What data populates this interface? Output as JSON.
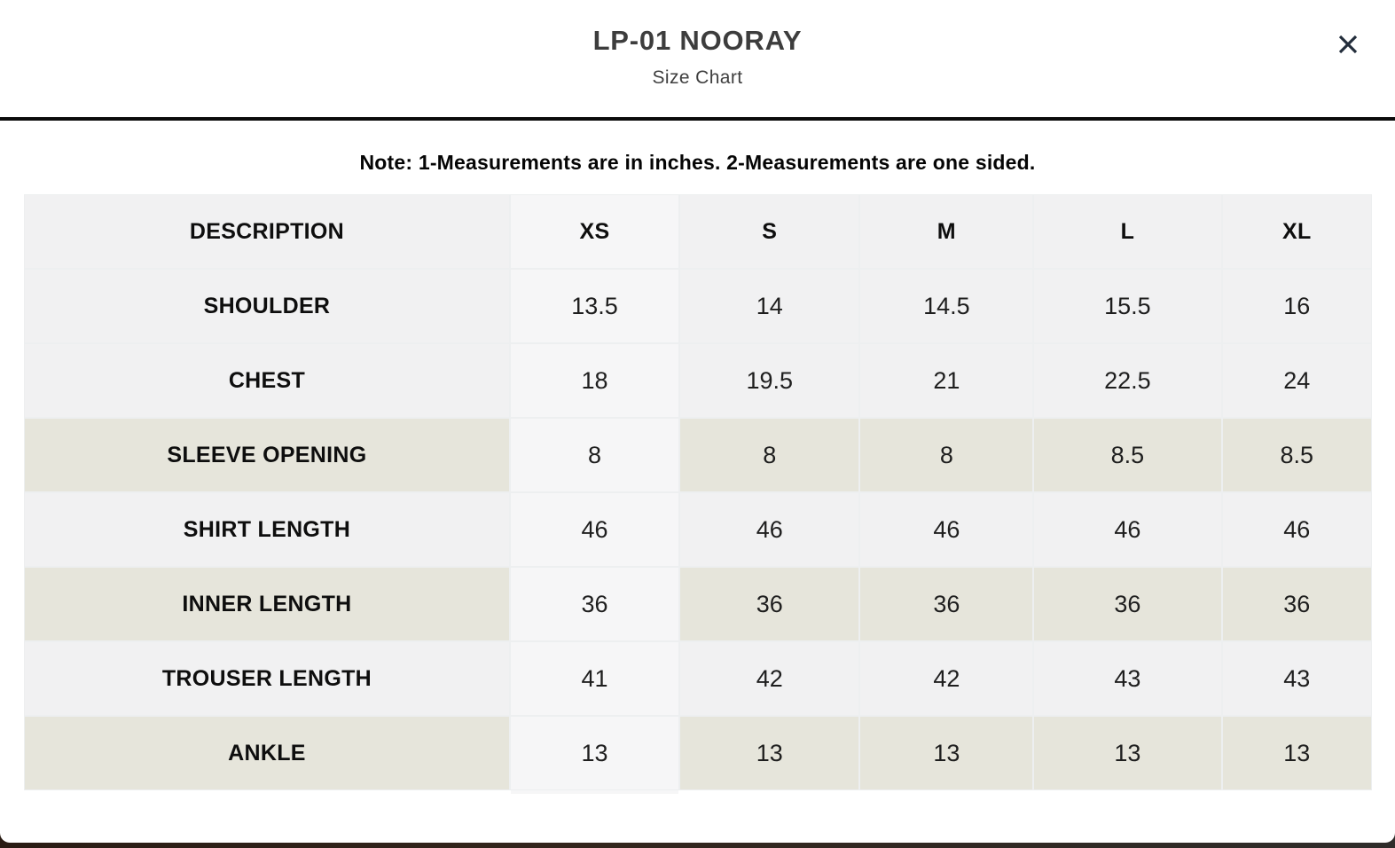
{
  "modal": {
    "title": "LP-01 NOORAY",
    "subtitle": "Size Chart",
    "close_icon": "close-x",
    "note": "Note: 1-Measurements are in inches. 2-Measurements are one sided."
  },
  "table": {
    "columns": [
      "DESCRIPTION",
      "XS",
      "S",
      "M",
      "L",
      "XL"
    ],
    "rows": [
      {
        "label": "SHOULDER",
        "tone": "gray",
        "values": [
          "13.5",
          "14",
          "14.5",
          "15.5",
          "16"
        ]
      },
      {
        "label": "CHEST",
        "tone": "gray",
        "values": [
          "18",
          "19.5",
          "21",
          "22.5",
          "24"
        ]
      },
      {
        "label": "SLEEVE OPENING",
        "tone": "beige",
        "values": [
          "8",
          "8",
          "8",
          "8.5",
          "8.5"
        ]
      },
      {
        "label": "SHIRT LENGTH",
        "tone": "gray",
        "values": [
          "46",
          "46",
          "46",
          "46",
          "46"
        ]
      },
      {
        "label": "INNER LENGTH",
        "tone": "beige",
        "values": [
          "36",
          "36",
          "36",
          "36",
          "36"
        ]
      },
      {
        "label": "TROUSER LENGTH",
        "tone": "gray",
        "values": [
          "41",
          "42",
          "42",
          "43",
          "43"
        ]
      },
      {
        "label": "ANKLE",
        "tone": "beige",
        "values": [
          "13",
          "13",
          "13",
          "13",
          "13"
        ]
      }
    ]
  },
  "colors": {
    "gray_cell": "#f1f1f2",
    "beige_cell": "#e6e5db",
    "xs_highlight_cell": "#f6f6f7",
    "separator": "#edeff0",
    "divider": "#0b0b0b",
    "close_icon": "#232d3b",
    "title_text": "#3d3d3d"
  }
}
